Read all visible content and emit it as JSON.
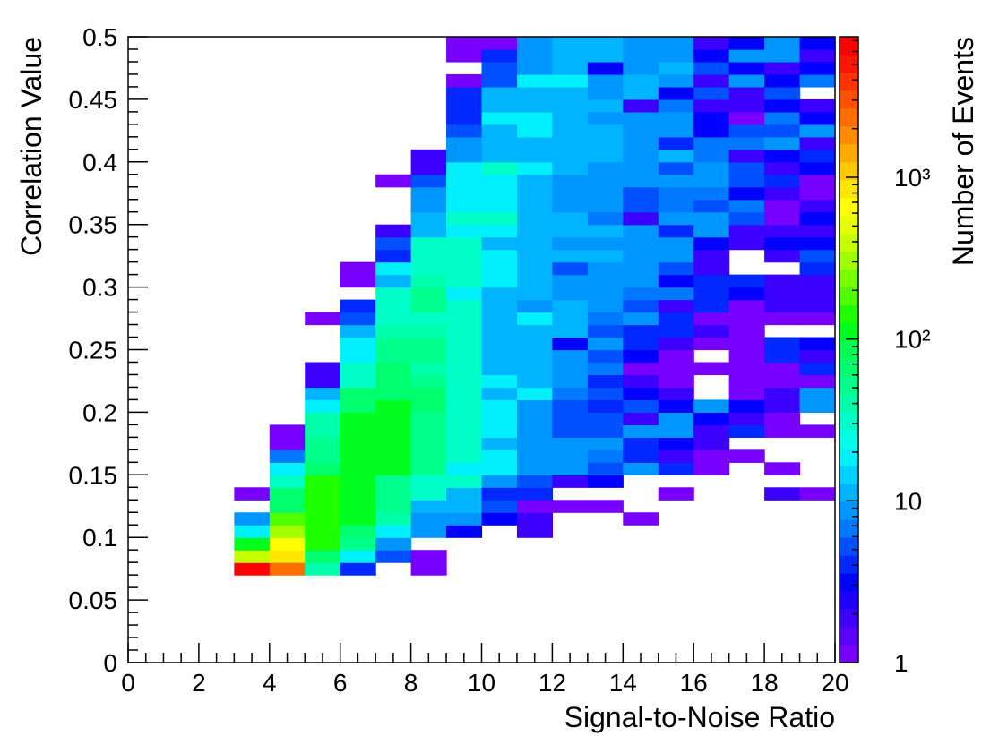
{
  "chart_data": {
    "type": "heatmap",
    "xlabel": "Signal-to-Noise Ratio",
    "ylabel": "Correlation Value",
    "zlabel": "Number of Events",
    "xlim": [
      0,
      20
    ],
    "ylim": [
      0,
      0.5
    ],
    "xticks": [
      0,
      2,
      4,
      6,
      8,
      10,
      12,
      14,
      16,
      18,
      20
    ],
    "yticks": [
      0,
      0.05,
      0.1,
      0.15,
      0.2,
      0.25,
      0.3,
      0.35,
      0.4,
      0.45,
      0.5
    ],
    "zlim": [
      1,
      7400
    ],
    "zscale": "log",
    "zticks": [
      1,
      10,
      {
        "value": 100,
        "label": "10²"
      },
      {
        "value": 1000,
        "label": "10³"
      }
    ],
    "palette": [
      "#7800ff",
      "#5a00ff",
      "#3c00ff",
      "#1e00ff",
      "#0000ff",
      "#0028ff",
      "#0050ff",
      "#0078ff",
      "#0096ff",
      "#00b4ff",
      "#00d2ff",
      "#00f0ff",
      "#00ffe6",
      "#00ffc8",
      "#00ffaa",
      "#00ff8c",
      "#00ff6e",
      "#00ff50",
      "#00ff1e",
      "#1eff00",
      "#50ff00",
      "#78ff00",
      "#a0ff00",
      "#c8ff00",
      "#e6ff00",
      "#ffff00",
      "#ffe600",
      "#ffc800",
      "#ffaa00",
      "#ff8c00",
      "#ff6e00",
      "#ff5000",
      "#ff3200",
      "#ff1400",
      "#ff0000"
    ],
    "x": [
      3,
      4,
      5,
      6,
      7,
      8,
      9,
      10,
      11,
      12,
      13,
      14,
      15,
      16,
      17,
      18,
      19
    ],
    "y": [
      0.07,
      0.08,
      0.09,
      0.1,
      0.11,
      0.12,
      0.13,
      0.14,
      0.15,
      0.16,
      0.17,
      0.18,
      0.19,
      0.2,
      0.21,
      0.22,
      0.23,
      0.24,
      0.25,
      0.26,
      0.27,
      0.28,
      0.29,
      0.3,
      0.31,
      0.32,
      0.33,
      0.34,
      0.35,
      0.36,
      0.37,
      0.38,
      0.39,
      0.4,
      0.41,
      0.42,
      0.43,
      0.44,
      0.45,
      0.46,
      0.47,
      0.48,
      0.49
    ],
    "z": [
      [
        6000,
        2500,
        40,
        4,
        null,
        1,
        null,
        null,
        null,
        null,
        null,
        null,
        null,
        null,
        null,
        null,
        null
      ],
      [
        400,
        900,
        70,
        20,
        5,
        1,
        null,
        null,
        null,
        null,
        null,
        null,
        null,
        null,
        null,
        null,
        null
      ],
      [
        100,
        700,
        150,
        50,
        8,
        null,
        null,
        null,
        null,
        null,
        null,
        null,
        null,
        null,
        null,
        null,
        null
      ],
      [
        20,
        300,
        150,
        60,
        20,
        8,
        3,
        null,
        2,
        null,
        null,
        null,
        null,
        null,
        null,
        null,
        null
      ],
      [
        8,
        200,
        150,
        100,
        40,
        8,
        8,
        3,
        2,
        null,
        null,
        1,
        null,
        null,
        null,
        null,
        null
      ],
      [
        null,
        60,
        150,
        100,
        50,
        12,
        12,
        5,
        1,
        1,
        1,
        null,
        null,
        null,
        null,
        null,
        null
      ],
      [
        1,
        70,
        150,
        100,
        50,
        30,
        12,
        4,
        4,
        null,
        null,
        null,
        1,
        null,
        null,
        2,
        1
      ],
      [
        null,
        30,
        150,
        100,
        50,
        30,
        30,
        8,
        5,
        2,
        3,
        null,
        null,
        null,
        null,
        null,
        null
      ],
      [
        null,
        20,
        70,
        100,
        100,
        50,
        20,
        20,
        8,
        8,
        5,
        8,
        4,
        1,
        null,
        1,
        null
      ],
      [
        null,
        6,
        50,
        100,
        100,
        50,
        30,
        20,
        8,
        8,
        6,
        4,
        2,
        1,
        1,
        null,
        null
      ],
      [
        null,
        1,
        50,
        100,
        100,
        50,
        30,
        12,
        8,
        8,
        8,
        4,
        3,
        2,
        null,
        null,
        null
      ],
      [
        null,
        1,
        40,
        100,
        100,
        50,
        30,
        20,
        8,
        5,
        5,
        8,
        8,
        2,
        4,
        1,
        1
      ],
      [
        null,
        null,
        40,
        100,
        100,
        50,
        30,
        20,
        8,
        5,
        5,
        2,
        8,
        3,
        2,
        1,
        null
      ],
      [
        null,
        null,
        20,
        60,
        100,
        70,
        30,
        20,
        8,
        5,
        4,
        5,
        3,
        8,
        3,
        2,
        8
      ],
      [
        null,
        null,
        12,
        60,
        70,
        70,
        30,
        12,
        20,
        6,
        5,
        3,
        2,
        null,
        1,
        2,
        8
      ],
      [
        null,
        null,
        2,
        30,
        70,
        50,
        30,
        20,
        10,
        8,
        4,
        2,
        1,
        null,
        1,
        1,
        1
      ],
      [
        null,
        null,
        2,
        30,
        70,
        40,
        30,
        10,
        12,
        8,
        6,
        1,
        1,
        1,
        1,
        1,
        4
      ],
      [
        null,
        null,
        null,
        20,
        50,
        50,
        30,
        12,
        12,
        8,
        5,
        3,
        1,
        null,
        1,
        4,
        2
      ],
      [
        null,
        null,
        null,
        20,
        50,
        50,
        30,
        12,
        12,
        3,
        8,
        4,
        2,
        1,
        1,
        4,
        3
      ],
      [
        null,
        null,
        null,
        12,
        40,
        40,
        30,
        10,
        12,
        10,
        5,
        4,
        4,
        2,
        1,
        null,
        null
      ],
      [
        null,
        null,
        1,
        5,
        30,
        30,
        30,
        12,
        20,
        12,
        6,
        8,
        4,
        1,
        1,
        1,
        1
      ],
      [
        null,
        null,
        null,
        4,
        30,
        50,
        30,
        12,
        8,
        12,
        8,
        5,
        2,
        4,
        1,
        2,
        2
      ],
      [
        null,
        null,
        null,
        null,
        30,
        50,
        20,
        12,
        12,
        8,
        8,
        6,
        6,
        4,
        3,
        2,
        2
      ],
      [
        null,
        null,
        null,
        1,
        12,
        40,
        30,
        20,
        12,
        8,
        8,
        8,
        3,
        4,
        4,
        2,
        2
      ],
      [
        null,
        null,
        null,
        1,
        20,
        30,
        30,
        20,
        12,
        5,
        8,
        8,
        5,
        2,
        null,
        null,
        4
      ],
      [
        null,
        null,
        null,
        null,
        4,
        30,
        30,
        20,
        12,
        10,
        12,
        8,
        8,
        2,
        null,
        2,
        5
      ],
      [
        null,
        null,
        null,
        null,
        5,
        30,
        30,
        12,
        10,
        8,
        8,
        8,
        8,
        3,
        2,
        3,
        3
      ],
      [
        null,
        null,
        null,
        null,
        2,
        12,
        20,
        20,
        12,
        10,
        10,
        8,
        4,
        8,
        2,
        2,
        2
      ],
      [
        null,
        null,
        null,
        null,
        null,
        12,
        30,
        30,
        12,
        10,
        6,
        2,
        8,
        8,
        5,
        1,
        3
      ],
      [
        null,
        null,
        null,
        null,
        null,
        8,
        20,
        20,
        12,
        8,
        8,
        5,
        6,
        5,
        6,
        1,
        2
      ],
      [
        null,
        null,
        null,
        null,
        null,
        8,
        20,
        20,
        12,
        8,
        8,
        5,
        6,
        6,
        3,
        2,
        1
      ],
      [
        null,
        null,
        null,
        null,
        1,
        5,
        20,
        20,
        12,
        8,
        8,
        8,
        8,
        8,
        5,
        4,
        1
      ],
      [
        null,
        null,
        null,
        null,
        null,
        2,
        20,
        30,
        20,
        10,
        8,
        8,
        5,
        8,
        5,
        2,
        3
      ],
      [
        null,
        null,
        null,
        null,
        null,
        2,
        8,
        12,
        10,
        10,
        12,
        8,
        12,
        6,
        2,
        3,
        4
      ],
      [
        null,
        null,
        null,
        null,
        null,
        null,
        8,
        12,
        12,
        10,
        12,
        8,
        4,
        6,
        6,
        8,
        2
      ],
      [
        null,
        null,
        null,
        null,
        null,
        null,
        5,
        12,
        20,
        12,
        10,
        8,
        8,
        3,
        5,
        5,
        8
      ],
      [
        null,
        null,
        null,
        null,
        null,
        null,
        4,
        20,
        20,
        12,
        8,
        8,
        8,
        3,
        1,
        6,
        3
      ],
      [
        null,
        null,
        null,
        null,
        null,
        null,
        4,
        12,
        12,
        10,
        12,
        2,
        6,
        2,
        2,
        3,
        2
      ],
      [
        null,
        null,
        null,
        null,
        null,
        null,
        4,
        12,
        10,
        12,
        8,
        10,
        3,
        5,
        2,
        5,
        null
      ],
      [
        null,
        null,
        null,
        null,
        null,
        null,
        1,
        5,
        20,
        20,
        8,
        10,
        8,
        2,
        8,
        3,
        6
      ],
      [
        null,
        null,
        null,
        null,
        null,
        null,
        null,
        5,
        8,
        10,
        3,
        8,
        10,
        5,
        3,
        2,
        3
      ],
      [
        null,
        null,
        null,
        null,
        null,
        null,
        1,
        4,
        8,
        12,
        10,
        8,
        8,
        3,
        8,
        8,
        2
      ],
      [
        null,
        null,
        null,
        null,
        null,
        null,
        1,
        1,
        8,
        12,
        12,
        8,
        8,
        2,
        3,
        8,
        3
      ]
    ]
  }
}
